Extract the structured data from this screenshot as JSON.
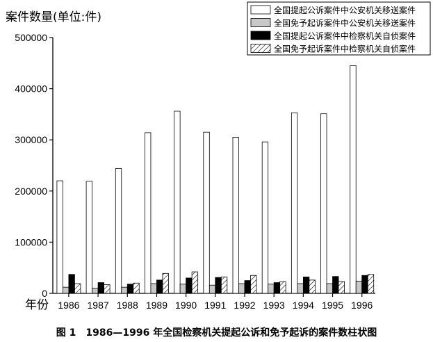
{
  "chart_data": {
    "type": "bar",
    "ylabel": "案件数量(单位:件)",
    "xlabel": "年份",
    "categories": [
      "1986",
      "1987",
      "1988",
      "1989",
      "1990",
      "1991",
      "1992",
      "1993",
      "1994",
      "1995",
      "1996"
    ],
    "ylim": [
      0,
      500000
    ],
    "yticks": [
      "0",
      "100000",
      "200000",
      "300000",
      "400000",
      "500000"
    ],
    "legend_position": "top-right",
    "series": [
      {
        "name": "全国提起公诉案件中公安机关移送案件",
        "pattern": "white",
        "values": [
          220000,
          219000,
          244000,
          314000,
          356000,
          315000,
          305000,
          296000,
          353000,
          351000,
          445000
        ]
      },
      {
        "name": "全国免予起诉案件中公安机关移送案件",
        "pattern": "gray",
        "values": [
          12000,
          10000,
          12000,
          19000,
          18000,
          16000,
          19000,
          18000,
          19000,
          19000,
          24000
        ]
      },
      {
        "name": "全国提起公诉案件中检察机关自侦案件",
        "pattern": "black",
        "values": [
          37000,
          21000,
          18000,
          26000,
          30000,
          31000,
          25000,
          21000,
          32000,
          33000,
          35000
        ]
      },
      {
        "name": "全国免予起诉案件中检察机关自侦案件",
        "pattern": "hatch",
        "values": [
          19000,
          17000,
          20000,
          39000,
          42000,
          32000,
          35000,
          23000,
          26000,
          23000,
          37000
        ]
      }
    ]
  },
  "caption": "图 1　1986—1996 年全国检察机关提起公诉和免予起诉的案件数柱状图",
  "colors": {
    "axis": "#000000",
    "white": "#ffffff",
    "gray": "#c8c8c8",
    "black": "#000000"
  }
}
